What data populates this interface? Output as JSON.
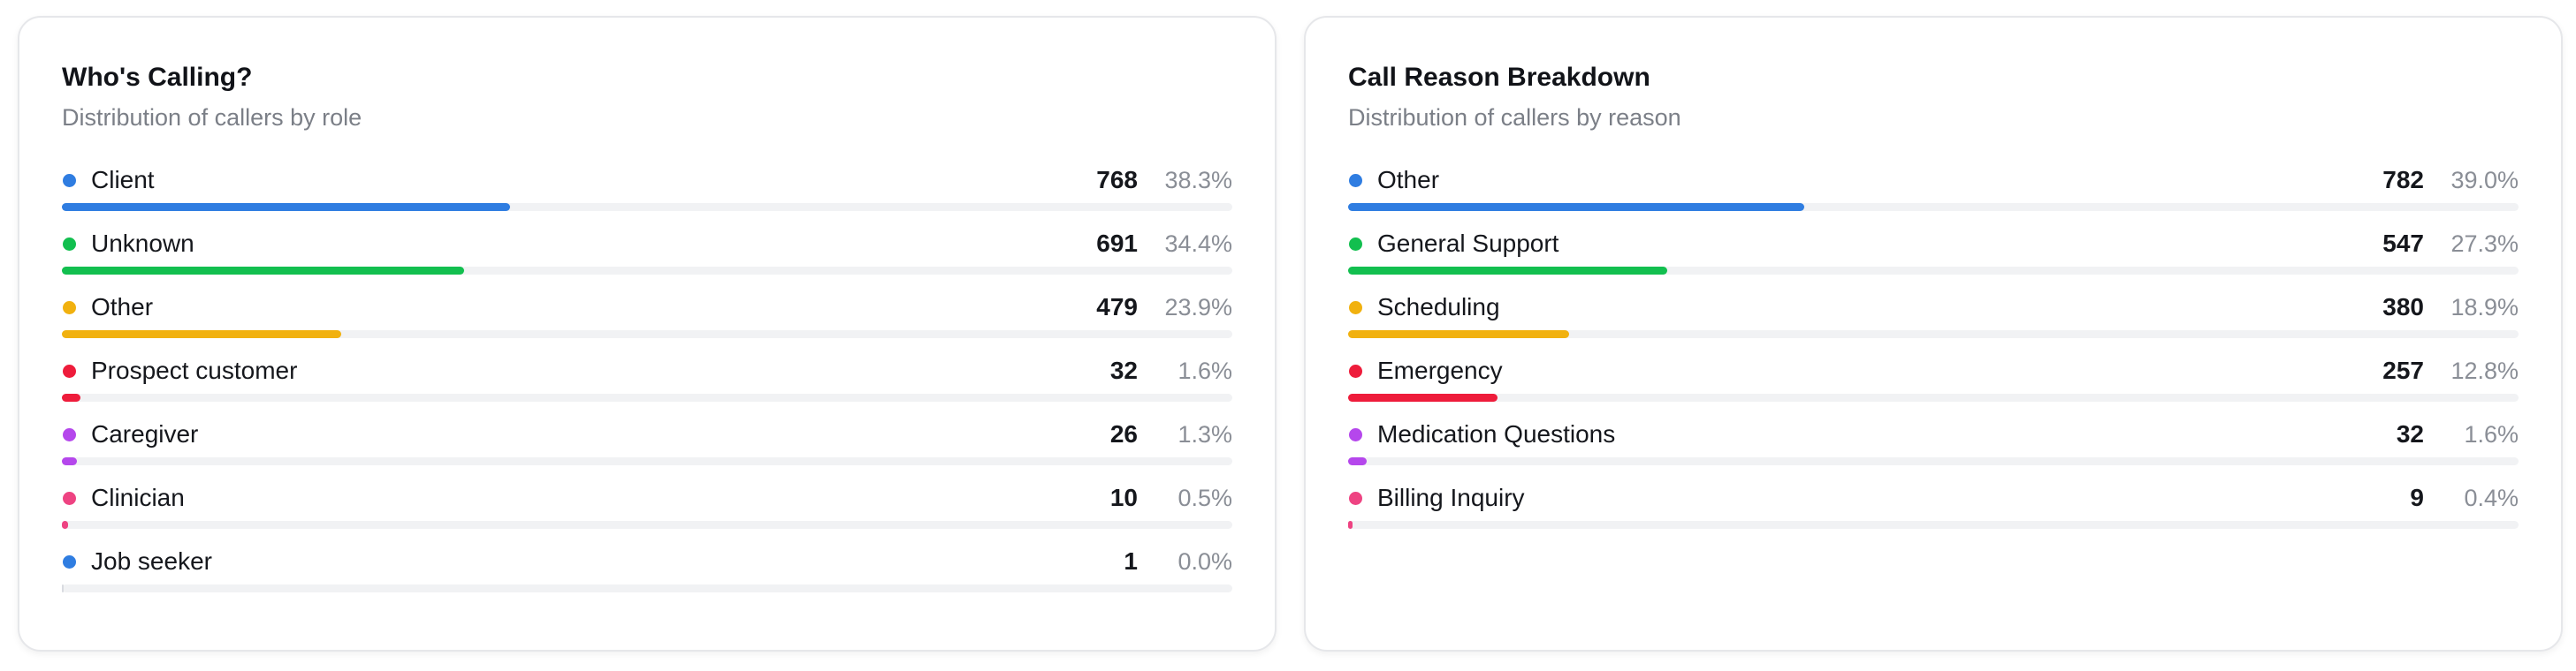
{
  "callers_card": {
    "title": "Who's Calling?",
    "subtitle": "Distribution of callers by role",
    "rows": [
      {
        "label": "Client",
        "count": "768",
        "percent": "38.3%",
        "fraction": 0.383,
        "color": "#2f7de1"
      },
      {
        "label": "Unknown",
        "count": "691",
        "percent": "34.4%",
        "fraction": 0.344,
        "color": "#12bf4f"
      },
      {
        "label": "Other",
        "count": "479",
        "percent": "23.9%",
        "fraction": 0.239,
        "color": "#f1b10f"
      },
      {
        "label": "Prospect customer",
        "count": "32",
        "percent": "1.6%",
        "fraction": 0.016,
        "color": "#ee1c3b"
      },
      {
        "label": "Caregiver",
        "count": "26",
        "percent": "1.3%",
        "fraction": 0.013,
        "color": "#b547ec"
      },
      {
        "label": "Clinician",
        "count": "10",
        "percent": "0.5%",
        "fraction": 0.005,
        "color": "#ee4382"
      },
      {
        "label": "Job seeker",
        "count": "1",
        "percent": "0.0%",
        "fraction": 0.0,
        "color": "#2f7de1"
      }
    ]
  },
  "reasons_card": {
    "title": "Call Reason Breakdown",
    "subtitle": "Distribution of callers by reason",
    "rows": [
      {
        "label": "Other",
        "count": "782",
        "percent": "39.0%",
        "fraction": 0.39,
        "color": "#2f7de1"
      },
      {
        "label": "General Support",
        "count": "547",
        "percent": "27.3%",
        "fraction": 0.273,
        "color": "#12bf4f"
      },
      {
        "label": "Scheduling",
        "count": "380",
        "percent": "18.9%",
        "fraction": 0.189,
        "color": "#f1b10f"
      },
      {
        "label": "Emergency",
        "count": "257",
        "percent": "12.8%",
        "fraction": 0.128,
        "color": "#ee1c3b"
      },
      {
        "label": "Medication Questions",
        "count": "32",
        "percent": "1.6%",
        "fraction": 0.016,
        "color": "#b547ec"
      },
      {
        "label": "Billing Inquiry",
        "count": "9",
        "percent": "0.4%",
        "fraction": 0.004,
        "color": "#ee4382"
      }
    ]
  }
}
